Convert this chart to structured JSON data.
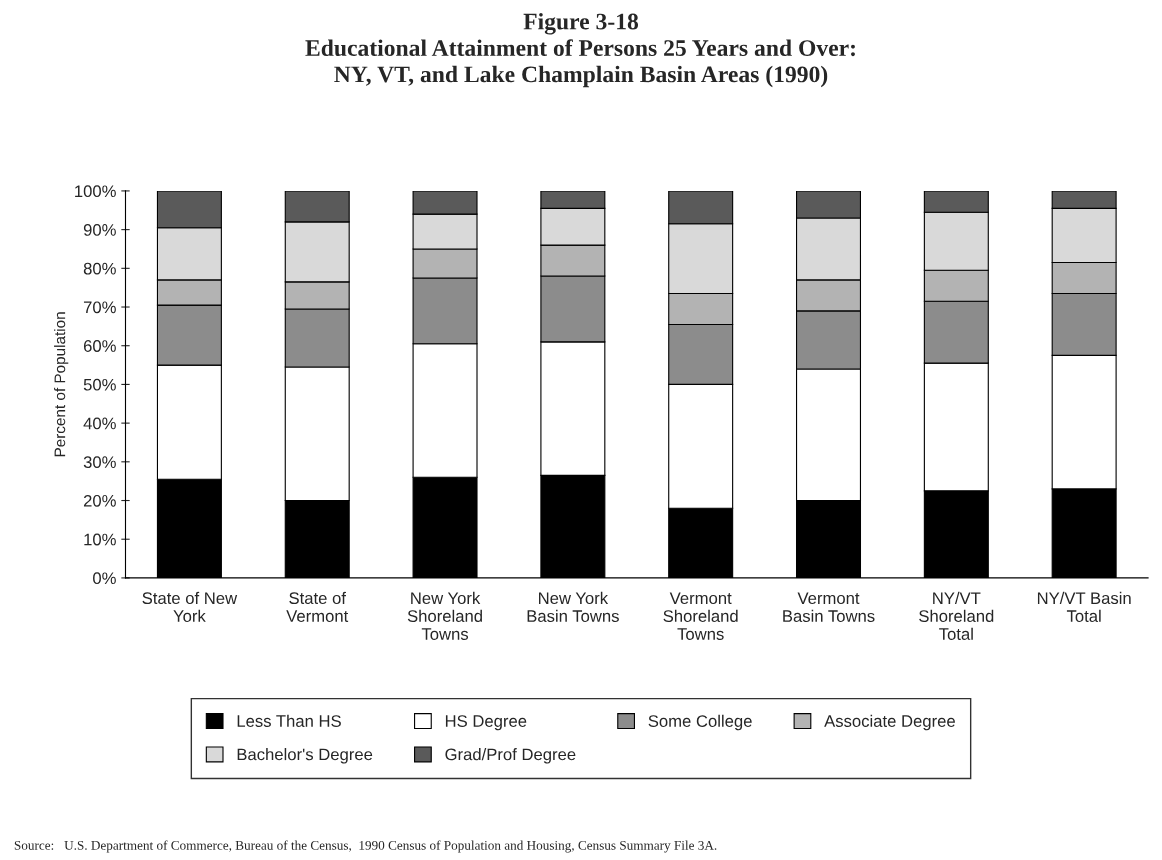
{
  "chart_data": {
    "type": "bar",
    "stacked": true,
    "title": "Figure 3-18\nEducational Attainment of Persons 25 Years and Over:\nNY, VT, and Lake Champlain Basin Areas (1990)",
    "ylabel": "Percent of Population",
    "categories": [
      "State of New\nYork",
      "State of\nVermont",
      "New York\nShoreland\nTowns",
      "New York\nBasin Towns",
      "Vermont\nShoreland\nTowns",
      "Vermont\nBasin Towns",
      "NY/VT\nShoreland\nTotal",
      "NY/VT Basin\nTotal"
    ],
    "series": [
      {
        "name": "Less Than HS",
        "color": "#000000",
        "values": [
          25.5,
          20,
          26,
          26.5,
          18,
          20,
          22.5,
          23
        ]
      },
      {
        "name": "HS Degree",
        "color": "#ffffff",
        "values": [
          29.5,
          34.5,
          34.5,
          34.5,
          32,
          34,
          33,
          34.5
        ]
      },
      {
        "name": "Some College",
        "color": "#8c8c8c",
        "values": [
          15.5,
          15,
          17,
          17,
          15.5,
          15,
          16,
          16
        ]
      },
      {
        "name": "Associate Degree",
        "color": "#b3b3b3",
        "values": [
          6.5,
          7,
          7.5,
          8,
          8,
          8,
          8,
          8
        ]
      },
      {
        "name": "Bachelor's Degree",
        "color": "#d9d9d9",
        "values": [
          13.5,
          15.5,
          9,
          9.5,
          18,
          16,
          15,
          14
        ]
      },
      {
        "name": "Grad/Prof Degree",
        "color": "#5a5a5a",
        "values": [
          9.5,
          8,
          6,
          4.5,
          8.5,
          7,
          5.5,
          4.5
        ]
      }
    ],
    "ylim": [
      0,
      100
    ],
    "yticks": [
      {
        "value": 0,
        "label": "0%"
      },
      {
        "value": 10,
        "label": "10%"
      },
      {
        "value": 20,
        "label": "20%"
      },
      {
        "value": 30,
        "label": "30%"
      },
      {
        "value": 40,
        "label": "40%"
      },
      {
        "value": 50,
        "label": "50%"
      },
      {
        "value": 60,
        "label": "60%"
      },
      {
        "value": 70,
        "label": "70%"
      },
      {
        "value": 80,
        "label": "80%"
      },
      {
        "value": 90,
        "label": "90%"
      },
      {
        "value": 100,
        "label": "100%"
      }
    ],
    "grid": false,
    "legend": "bottom",
    "annotations": [
      "Source:   U.S. Department of Commerce, Bureau of the Census,  1990 Census of Population and Housing, Census Summary File 3A."
    ]
  }
}
